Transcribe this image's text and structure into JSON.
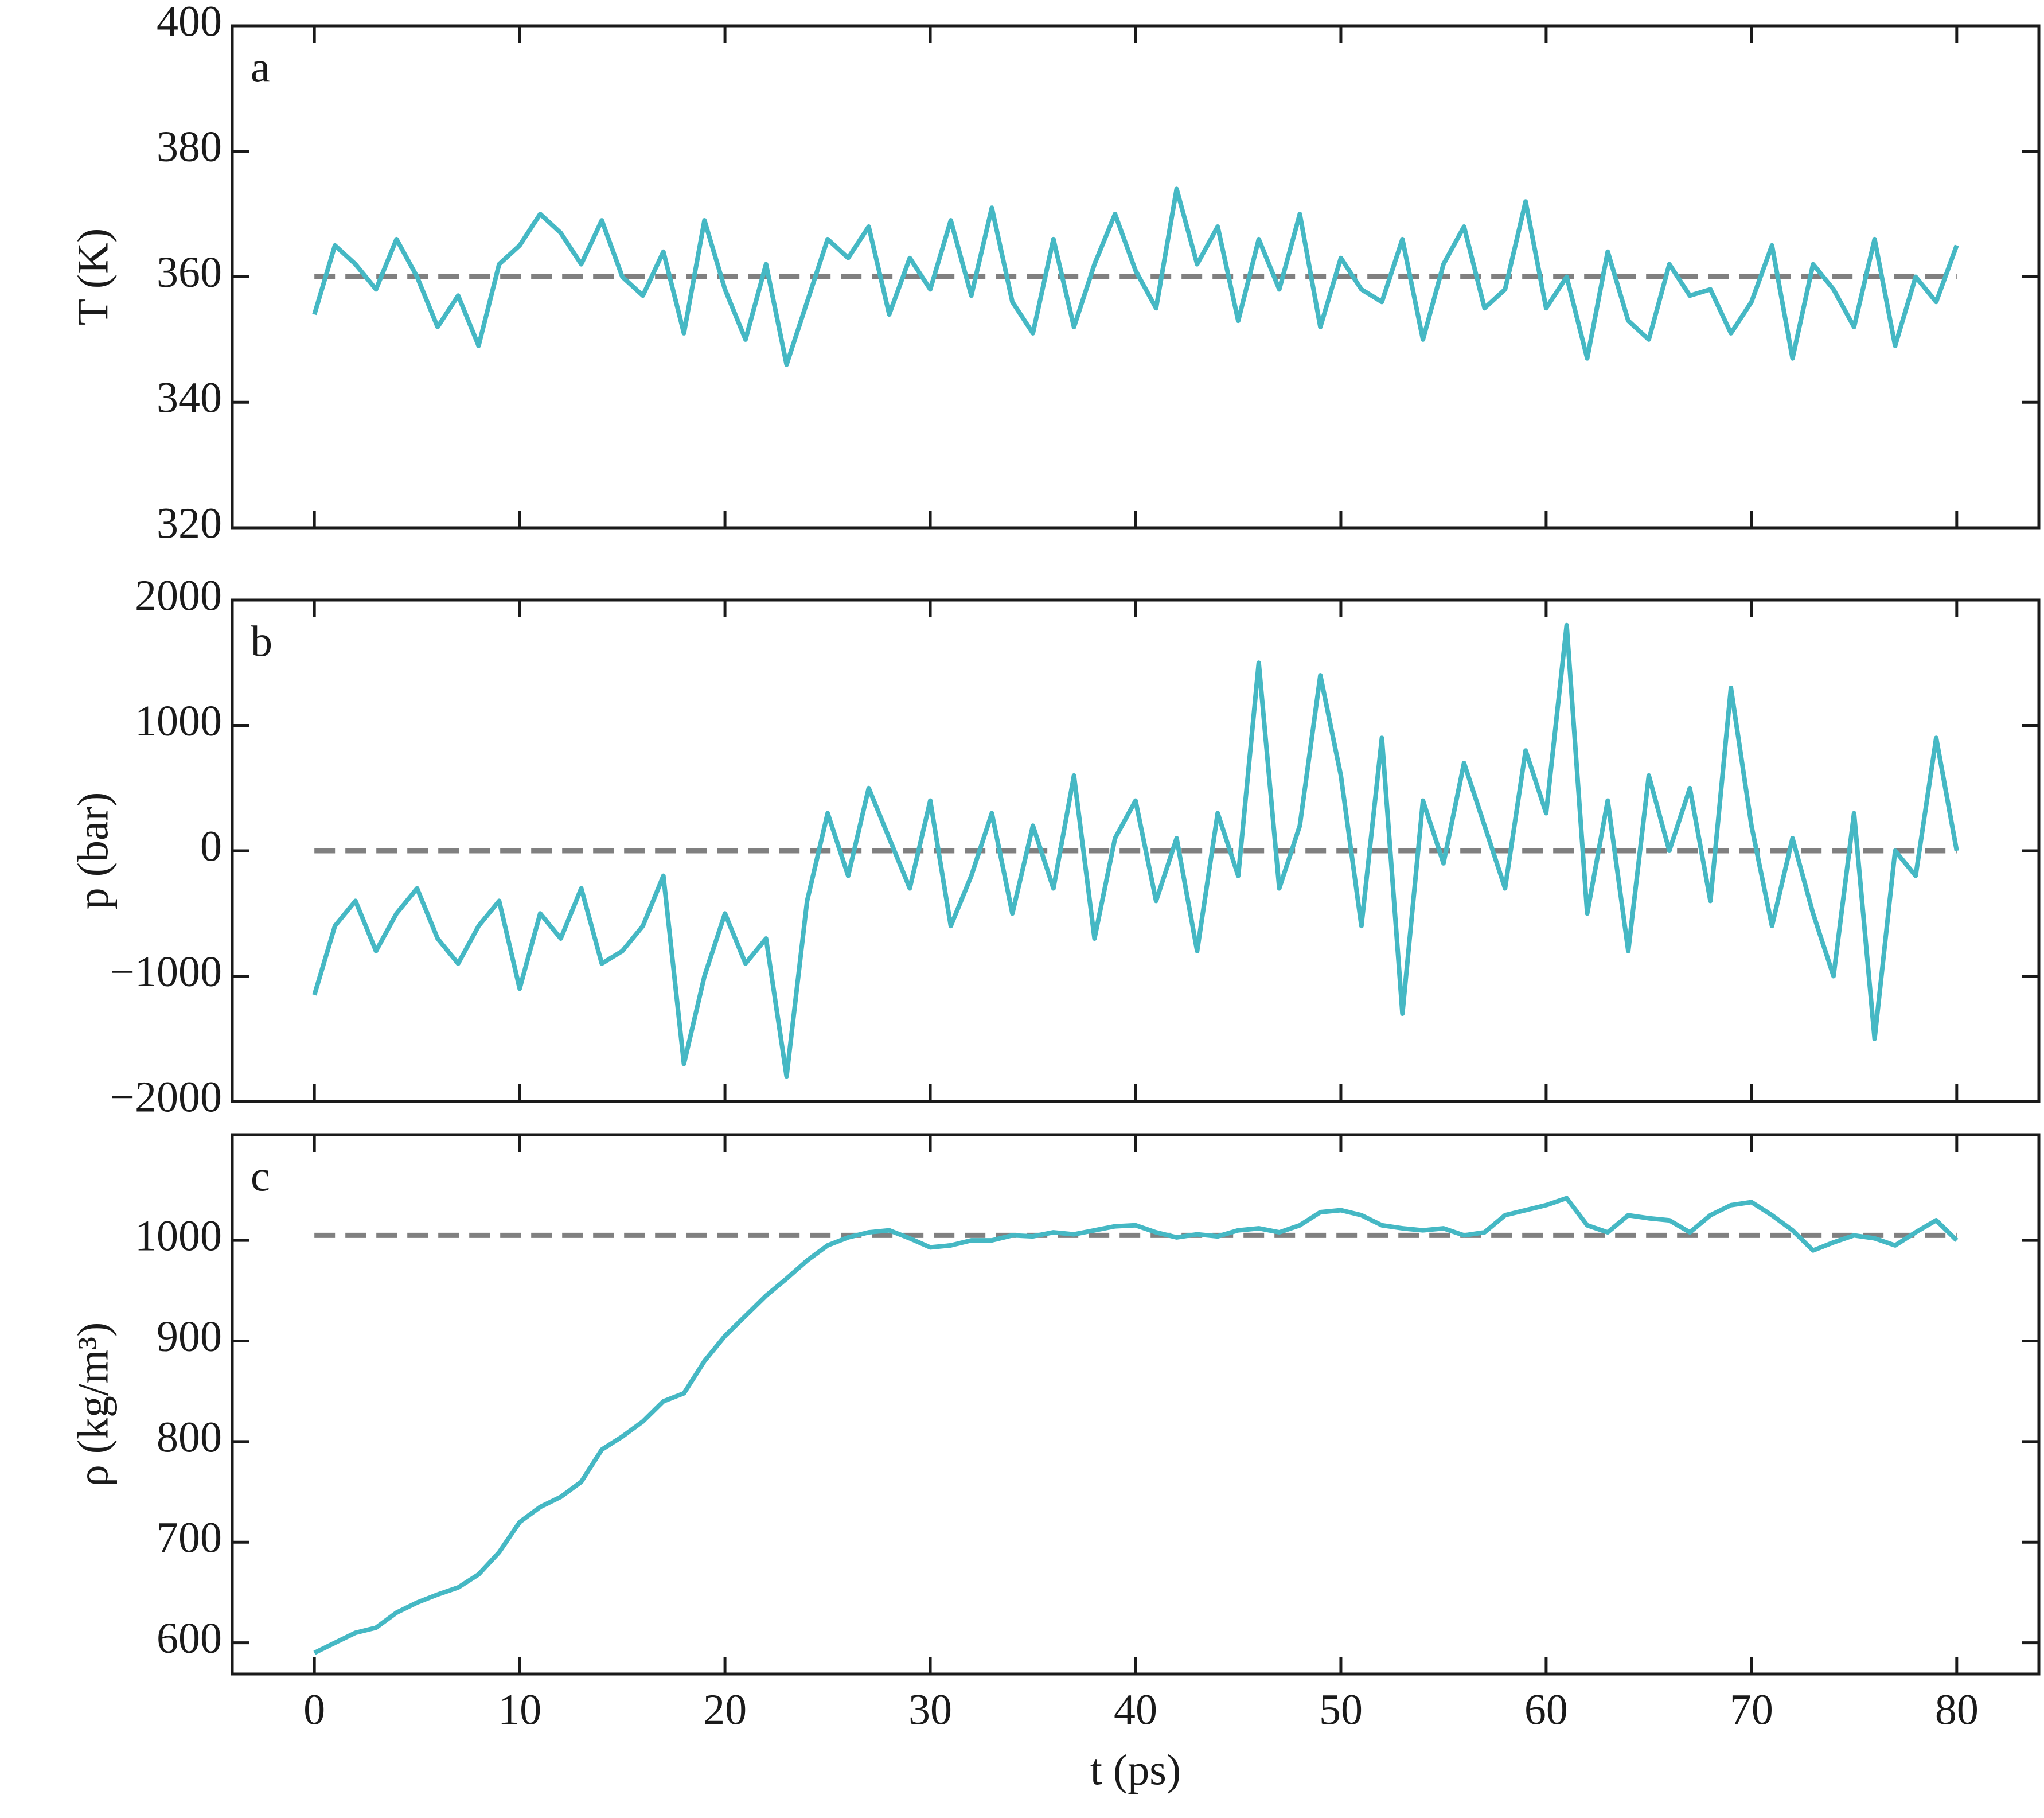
{
  "chart_data": [
    {
      "type": "line",
      "panel_label": "a",
      "ylabel": "T (K)",
      "color": "#45b8c4",
      "x": [
        0,
        1,
        2,
        3,
        4,
        5,
        6,
        7,
        8,
        9,
        10,
        11,
        12,
        13,
        14,
        15,
        16,
        17,
        18,
        19,
        20,
        21,
        22,
        23,
        24,
        25,
        26,
        27,
        28,
        29,
        30,
        31,
        32,
        33,
        34,
        35,
        36,
        37,
        38,
        39,
        40,
        41,
        42,
        43,
        44,
        45,
        46,
        47,
        48,
        49,
        50,
        51,
        52,
        53,
        54,
        55,
        56,
        57,
        58,
        59,
        60,
        61,
        62,
        63,
        64,
        65,
        66,
        67,
        68,
        69,
        70,
        71,
        72,
        73,
        74,
        75,
        76,
        77,
        78,
        79,
        80
      ],
      "values": [
        354,
        365,
        362,
        358,
        366,
        360,
        352,
        357,
        349,
        362,
        365,
        370,
        367,
        362,
        369,
        360,
        357,
        364,
        351,
        369,
        358,
        350,
        362,
        346,
        356,
        366,
        363,
        368,
        354,
        363,
        358,
        369,
        357,
        371,
        356,
        351,
        366,
        352,
        362,
        370,
        361,
        355,
        374,
        362,
        368,
        353,
        366,
        358,
        370,
        352,
        363,
        358,
        356,
        366,
        350,
        362,
        368,
        355,
        358,
        372,
        355,
        360,
        347,
        364,
        353,
        350,
        362,
        357,
        358,
        351,
        356,
        365,
        347,
        362,
        358,
        352,
        366,
        349,
        360,
        356,
        365
      ],
      "reference": 360,
      "reference_color": "#808080",
      "xlim": [
        -4,
        84
      ],
      "xticks": [
        0,
        10,
        20,
        30,
        40,
        50,
        60,
        70,
        80
      ],
      "show_xtick_labels": false,
      "ylim": [
        320,
        400
      ],
      "yticks": [
        320,
        340,
        360,
        380,
        400
      ]
    },
    {
      "type": "line",
      "panel_label": "b",
      "ylabel": "p (bar)",
      "color": "#45b8c4",
      "x": [
        0,
        1,
        2,
        3,
        4,
        5,
        6,
        7,
        8,
        9,
        10,
        11,
        12,
        13,
        14,
        15,
        16,
        17,
        18,
        19,
        20,
        21,
        22,
        23,
        24,
        25,
        26,
        27,
        28,
        29,
        30,
        31,
        32,
        33,
        34,
        35,
        36,
        37,
        38,
        39,
        40,
        41,
        42,
        43,
        44,
        45,
        46,
        47,
        48,
        49,
        50,
        51,
        52,
        53,
        54,
        55,
        56,
        57,
        58,
        59,
        60,
        61,
        62,
        63,
        64,
        65,
        66,
        67,
        68,
        69,
        70,
        71,
        72,
        73,
        74,
        75,
        76,
        77,
        78,
        79,
        80
      ],
      "values": [
        -1150,
        -600,
        -400,
        -800,
        -500,
        -300,
        -700,
        -900,
        -600,
        -400,
        -1100,
        -500,
        -700,
        -300,
        -900,
        -800,
        -600,
        -200,
        -1700,
        -1000,
        -500,
        -900,
        -700,
        -1800,
        -400,
        300,
        -200,
        500,
        100,
        -300,
        400,
        -600,
        -200,
        300,
        -500,
        200,
        -300,
        600,
        -700,
        100,
        400,
        -400,
        100,
        -800,
        300,
        -200,
        1500,
        -300,
        200,
        1400,
        600,
        -600,
        900,
        -1300,
        400,
        -100,
        700,
        200,
        -300,
        800,
        300,
        1800,
        -500,
        400,
        -800,
        600,
        0,
        500,
        -400,
        1300,
        200,
        -600,
        100,
        -500,
        -1000,
        300,
        -1500,
        0,
        -200,
        900,
        0
      ],
      "reference": 0,
      "reference_color": "#808080",
      "xlim": [
        -4,
        84
      ],
      "xticks": [
        0,
        10,
        20,
        30,
        40,
        50,
        60,
        70,
        80
      ],
      "show_xtick_labels": false,
      "ylim": [
        -2000,
        2000
      ],
      "yticks": [
        {
          "value": -2000,
          "label": "−2000"
        },
        {
          "value": -1000,
          "label": "−1000"
        },
        0,
        1000,
        2000
      ]
    },
    {
      "type": "line",
      "panel_label": "c",
      "ylabel": "ρ (kg/m³)",
      "xlabel": "t (ps)",
      "color": "#45b8c4",
      "x": [
        0,
        1,
        2,
        3,
        4,
        5,
        6,
        7,
        8,
        9,
        10,
        11,
        12,
        13,
        14,
        15,
        16,
        17,
        18,
        19,
        20,
        21,
        22,
        23,
        24,
        25,
        26,
        27,
        28,
        29,
        30,
        31,
        32,
        33,
        34,
        35,
        36,
        37,
        38,
        39,
        40,
        41,
        42,
        43,
        44,
        45,
        46,
        47,
        48,
        49,
        50,
        51,
        52,
        53,
        54,
        55,
        56,
        57,
        58,
        59,
        60,
        61,
        62,
        63,
        64,
        65,
        66,
        67,
        68,
        69,
        70,
        71,
        72,
        73,
        74,
        75,
        76,
        77,
        78,
        79,
        80
      ],
      "values": [
        590,
        600,
        610,
        615,
        630,
        640,
        648,
        655,
        668,
        690,
        720,
        735,
        745,
        760,
        792,
        805,
        820,
        840,
        848,
        880,
        905,
        925,
        945,
        962,
        980,
        995,
        1003,
        1008,
        1010,
        1002,
        993,
        995,
        1000,
        1000,
        1005,
        1004,
        1008,
        1006,
        1010,
        1014,
        1015,
        1008,
        1003,
        1006,
        1004,
        1010,
        1012,
        1008,
        1015,
        1028,
        1030,
        1025,
        1015,
        1012,
        1010,
        1012,
        1005,
        1008,
        1025,
        1030,
        1035,
        1042,
        1015,
        1008,
        1025,
        1022,
        1020,
        1008,
        1025,
        1035,
        1038,
        1025,
        1010,
        990,
        998,
        1005,
        1002,
        995,
        1008,
        1020,
        1000
      ],
      "reference": 1005,
      "reference_color": "#808080",
      "xlim": [
        -4,
        84
      ],
      "xticks": [
        0,
        10,
        20,
        30,
        40,
        50,
        60,
        70,
        80
      ],
      "show_xtick_labels": true,
      "ylim": [
        569,
        1105
      ],
      "yticks": [
        600,
        700,
        800,
        900,
        1000
      ]
    }
  ]
}
